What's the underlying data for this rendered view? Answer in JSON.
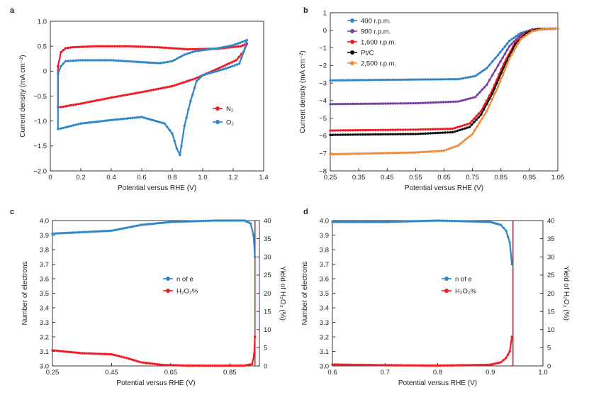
{
  "colors": {
    "red": "#ee1c25",
    "blue": "#2f86c8",
    "purple": "#7b3fa6",
    "black": "#111111",
    "orange": "#f08a3c",
    "axis": "#222222"
  },
  "chart_data": [
    {
      "panel": "a",
      "type": "line",
      "title": "",
      "xlabel": "Potential versus RHE (V)",
      "ylabel": "Current density (mA cm⁻²)",
      "xlim": [
        0,
        1.4
      ],
      "ylim": [
        -2.0,
        1.0
      ],
      "xticks": [
        "0",
        "0.2",
        "0.4",
        "0.6",
        "0.8",
        "1.0",
        "1.2",
        "1.4"
      ],
      "yticks": [
        "−2.0",
        "−1.5",
        "−1.0",
        "−0.5",
        "0",
        "0.5",
        "1.0"
      ],
      "legend_position": "right",
      "series": [
        {
          "name": "N₂",
          "color_key": "red",
          "upper": [
            [
              0.05,
              0.1
            ],
            [
              0.07,
              0.38
            ],
            [
              0.1,
              0.46
            ],
            [
              0.15,
              0.48
            ],
            [
              0.3,
              0.5
            ],
            [
              0.5,
              0.5
            ],
            [
              0.7,
              0.48
            ],
            [
              0.9,
              0.44
            ],
            [
              1.1,
              0.45
            ],
            [
              1.25,
              0.5
            ],
            [
              1.29,
              0.55
            ]
          ],
          "lower": [
            [
              1.29,
              0.55
            ],
            [
              1.27,
              0.4
            ],
            [
              1.22,
              0.22
            ],
            [
              1.1,
              0.05
            ],
            [
              0.95,
              -0.15
            ],
            [
              0.8,
              -0.3
            ],
            [
              0.6,
              -0.42
            ],
            [
              0.4,
              -0.53
            ],
            [
              0.2,
              -0.65
            ],
            [
              0.07,
              -0.72
            ],
            [
              0.05,
              -0.72
            ],
            [
              0.05,
              0.1
            ]
          ]
        },
        {
          "name": "O₂",
          "color_key": "blue",
          "upper": [
            [
              0.05,
              -0.05
            ],
            [
              0.07,
              0.1
            ],
            [
              0.1,
              0.2
            ],
            [
              0.2,
              0.22
            ],
            [
              0.4,
              0.22
            ],
            [
              0.6,
              0.18
            ],
            [
              0.72,
              0.16
            ],
            [
              0.8,
              0.2
            ],
            [
              0.88,
              0.33
            ],
            [
              0.95,
              0.4
            ],
            [
              1.1,
              0.46
            ],
            [
              1.2,
              0.52
            ],
            [
              1.29,
              0.62
            ]
          ],
          "lower": [
            [
              1.29,
              0.62
            ],
            [
              1.27,
              0.4
            ],
            [
              1.24,
              0.15
            ],
            [
              1.15,
              0.05
            ],
            [
              1.0,
              -0.08
            ],
            [
              0.96,
              -0.2
            ],
            [
              0.92,
              -0.6
            ],
            [
              0.88,
              -1.1
            ],
            [
              0.86,
              -1.5
            ],
            [
              0.85,
              -1.68
            ],
            [
              0.83,
              -1.55
            ],
            [
              0.8,
              -1.25
            ],
            [
              0.75,
              -1.05
            ],
            [
              0.6,
              -0.92
            ],
            [
              0.4,
              -0.98
            ],
            [
              0.2,
              -1.05
            ],
            [
              0.07,
              -1.15
            ],
            [
              0.05,
              -1.16
            ],
            [
              0.05,
              -0.05
            ]
          ]
        }
      ]
    },
    {
      "panel": "b",
      "type": "line",
      "title": "",
      "xlabel": "Potential versus RHE (V)",
      "ylabel": "Current density (mA cm⁻²)",
      "xlim": [
        0.25,
        1.05
      ],
      "ylim": [
        -8,
        1
      ],
      "xticks": [
        "0.25",
        "0.35",
        "0.45",
        "0.55",
        "0.65",
        "0.75",
        "0.85",
        "0.95",
        "1.05"
      ],
      "yticks": [
        "−8",
        "−7",
        "−6",
        "−5",
        "−4",
        "−3",
        "−2",
        "−1",
        "0",
        "1"
      ],
      "legend_position": "top-left",
      "series": [
        {
          "name": "400 r.p.m.",
          "color_key": "blue",
          "points": [
            [
              0.25,
              -2.85
            ],
            [
              0.55,
              -2.8
            ],
            [
              0.7,
              -2.78
            ],
            [
              0.76,
              -2.6
            ],
            [
              0.8,
              -2.15
            ],
            [
              0.84,
              -1.4
            ],
            [
              0.88,
              -0.6
            ],
            [
              0.92,
              -0.15
            ],
            [
              0.96,
              0.05
            ],
            [
              1.05,
              0.1
            ]
          ]
        },
        {
          "name": "900 r.p.m.",
          "color_key": "purple",
          "points": [
            [
              0.25,
              -4.2
            ],
            [
              0.55,
              -4.15
            ],
            [
              0.7,
              -4.05
            ],
            [
              0.76,
              -3.8
            ],
            [
              0.8,
              -3.1
            ],
            [
              0.84,
              -2.0
            ],
            [
              0.88,
              -0.9
            ],
            [
              0.92,
              -0.25
            ],
            [
              0.96,
              0.05
            ],
            [
              1.05,
              0.1
            ]
          ]
        },
        {
          "name": "1,600 r.p.m.",
          "color_key": "red",
          "points": [
            [
              0.25,
              -5.7
            ],
            [
              0.55,
              -5.65
            ],
            [
              0.68,
              -5.6
            ],
            [
              0.74,
              -5.3
            ],
            [
              0.78,
              -4.6
            ],
            [
              0.82,
              -3.4
            ],
            [
              0.86,
              -1.9
            ],
            [
              0.9,
              -0.7
            ],
            [
              0.94,
              -0.1
            ],
            [
              0.98,
              0.08
            ],
            [
              1.05,
              0.1
            ]
          ]
        },
        {
          "name": "Pt/C",
          "color_key": "black",
          "points": [
            [
              0.25,
              -5.95
            ],
            [
              0.55,
              -5.9
            ],
            [
              0.68,
              -5.8
            ],
            [
              0.74,
              -5.5
            ],
            [
              0.78,
              -4.8
            ],
            [
              0.82,
              -3.6
            ],
            [
              0.86,
              -2.1
            ],
            [
              0.9,
              -0.8
            ],
            [
              0.94,
              -0.15
            ],
            [
              0.98,
              0.08
            ],
            [
              1.05,
              0.1
            ]
          ]
        },
        {
          "name": "2,500 r.p.m.",
          "color_key": "orange",
          "points": [
            [
              0.25,
              -7.05
            ],
            [
              0.55,
              -6.95
            ],
            [
              0.65,
              -6.85
            ],
            [
              0.7,
              -6.55
            ],
            [
              0.75,
              -5.9
            ],
            [
              0.8,
              -4.6
            ],
            [
              0.84,
              -3.2
            ],
            [
              0.88,
              -1.6
            ],
            [
              0.92,
              -0.5
            ],
            [
              0.96,
              -0.05
            ],
            [
              1.0,
              0.08
            ],
            [
              1.05,
              0.1
            ]
          ]
        }
      ]
    },
    {
      "panel": "c",
      "type": "line",
      "title": "",
      "xlabel": "Potential versus RHE (V)",
      "ylabel": "Number of electrons",
      "y2label": "Yield of H₂O₂ (%)",
      "xlim": [
        0.25,
        0.95
      ],
      "ylim": [
        3.0,
        4.0
      ],
      "y2lim": [
        0,
        40
      ],
      "xticks": [
        "0.25",
        "0.45",
        "0.65",
        "0.85"
      ],
      "xtick_values": [
        0.25,
        0.45,
        0.65,
        0.85
      ],
      "yticks": [
        "3.0",
        "3.1",
        "3.2",
        "3.3",
        "3.4",
        "3.5",
        "3.6",
        "3.7",
        "3.8",
        "3.9",
        "4.0"
      ],
      "y2ticks": [
        "0",
        "5",
        "10",
        "15",
        "20",
        "25",
        "30",
        "35",
        "40"
      ],
      "vline_x": 0.935,
      "legend_position": "center-right",
      "series": [
        {
          "name": "n of e",
          "color_key": "blue",
          "axis": "left",
          "points": [
            [
              0.25,
              3.91
            ],
            [
              0.35,
              3.92
            ],
            [
              0.45,
              3.93
            ],
            [
              0.55,
              3.97
            ],
            [
              0.65,
              3.99
            ],
            [
              0.8,
              4.0
            ],
            [
              0.9,
              4.0
            ],
            [
              0.92,
              3.98
            ],
            [
              0.93,
              3.9
            ],
            [
              0.935,
              3.75
            ]
          ]
        },
        {
          "name": "H₂O₂%",
          "color_key": "red",
          "axis": "right",
          "points": [
            [
              0.25,
              4.3
            ],
            [
              0.35,
              3.5
            ],
            [
              0.45,
              3.2
            ],
            [
              0.5,
              2.2
            ],
            [
              0.55,
              1.0
            ],
            [
              0.62,
              0.3
            ],
            [
              0.7,
              0.1
            ],
            [
              0.8,
              0.05
            ],
            [
              0.9,
              0.1
            ],
            [
              0.925,
              0.5
            ],
            [
              0.932,
              3.0
            ],
            [
              0.935,
              8.0
            ]
          ]
        }
      ]
    },
    {
      "panel": "d",
      "type": "line",
      "title": "",
      "xlabel": "Potential versus RHE (V)",
      "ylabel": "Number of electrons",
      "y2label": "Yield of H₂O₂ (%)",
      "xlim": [
        0.6,
        1.0
      ],
      "ylim": [
        3.0,
        4.0
      ],
      "y2lim": [
        0,
        40
      ],
      "xticks": [
        "0.6",
        "0.7",
        "0.8",
        "0.9",
        "1.0"
      ],
      "xtick_values": [
        0.6,
        0.7,
        0.8,
        0.9,
        1.0
      ],
      "yticks": [
        "3.0",
        "3.1",
        "3.2",
        "3.3",
        "3.4",
        "3.5",
        "3.6",
        "3.7",
        "3.8",
        "3.9",
        "4.0"
      ],
      "y2ticks": [
        "0",
        "5",
        "10",
        "15",
        "20",
        "25",
        "30",
        "35",
        "40"
      ],
      "vline_x": 0.943,
      "legend_position": "center-right",
      "series": [
        {
          "name": "n of e",
          "color_key": "blue",
          "axis": "left",
          "points": [
            [
              0.6,
              3.99
            ],
            [
              0.7,
              3.99
            ],
            [
              0.8,
              4.0
            ],
            [
              0.9,
              3.99
            ],
            [
              0.92,
              3.97
            ],
            [
              0.93,
              3.93
            ],
            [
              0.937,
              3.85
            ],
            [
              0.941,
              3.7
            ]
          ]
        },
        {
          "name": "H₂O₂%",
          "color_key": "red",
          "axis": "right",
          "points": [
            [
              0.6,
              0.4
            ],
            [
              0.7,
              0.2
            ],
            [
              0.8,
              0.1
            ],
            [
              0.9,
              0.3
            ],
            [
              0.92,
              1.0
            ],
            [
              0.93,
              2.2
            ],
            [
              0.937,
              4.0
            ],
            [
              0.941,
              8.0
            ]
          ]
        }
      ]
    }
  ]
}
